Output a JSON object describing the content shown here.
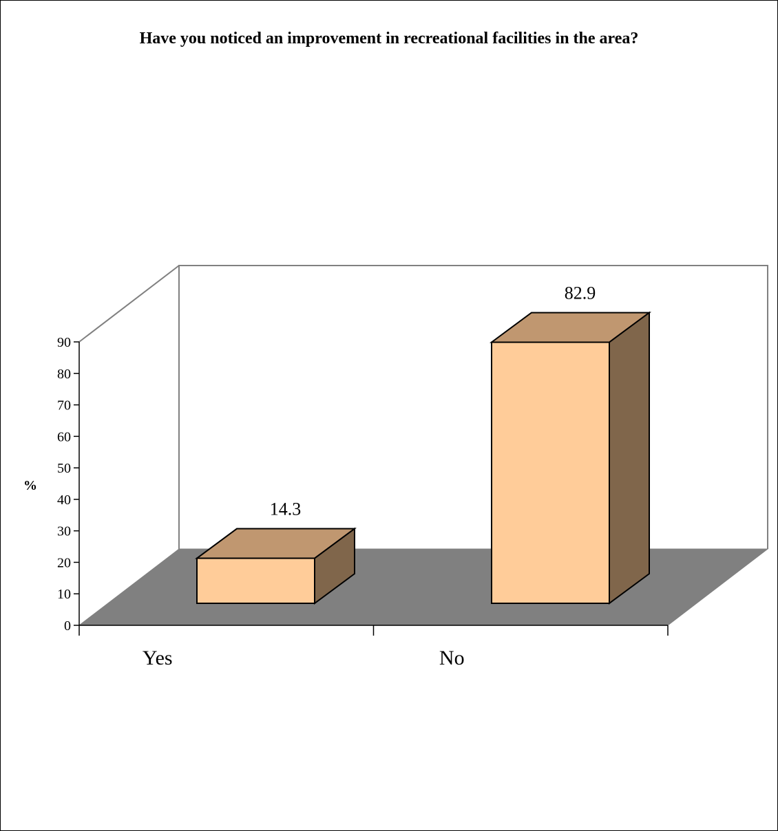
{
  "chart_data": {
    "type": "bar",
    "title": "Have you noticed an improvement in recreational facilities in the area?",
    "categories": [
      "Yes",
      "No"
    ],
    "values": [
      14.3,
      82.9
    ],
    "data_labels": [
      "14.3",
      "82.9"
    ],
    "ylabel": "%",
    "xlabel": "",
    "ylim": [
      0,
      90
    ],
    "yticks": [
      "0",
      "10",
      "20",
      "30",
      "40",
      "50",
      "60",
      "70",
      "80",
      "90"
    ],
    "grid": false,
    "legend": "none",
    "style": "3d-column",
    "colors": {
      "bar_front": "#FFCC99",
      "bar_top": "#C09770",
      "bar_side": "#80664B",
      "floor": "#808080",
      "wall_edge": "#808080",
      "axis": "#000000"
    }
  }
}
